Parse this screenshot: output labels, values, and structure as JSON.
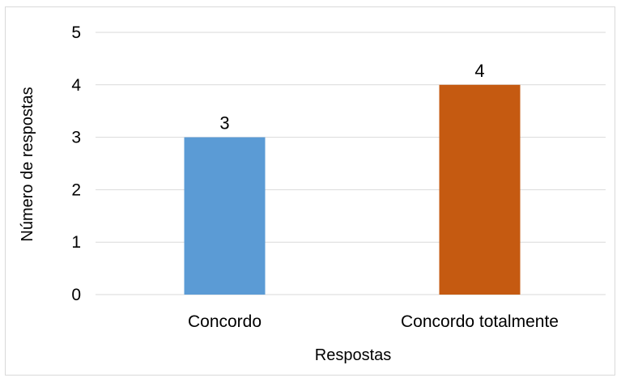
{
  "chart_data": {
    "type": "bar",
    "categories": [
      "Concordo",
      "Concordo totalmente"
    ],
    "values": [
      3,
      4
    ],
    "data_labels": [
      "3",
      "4"
    ],
    "xlabel": "Respostas",
    "ylabel": "Número de respostas",
    "ylim": [
      0,
      5
    ],
    "yticks": [
      "0",
      "1",
      "2",
      "3",
      "4",
      "5"
    ],
    "grid": true,
    "legend": "none",
    "colors": [
      "#5b9bd5",
      "#c55a11"
    ],
    "border_color": "#d9d9d9",
    "gridline_color": "#d9d9d9"
  }
}
